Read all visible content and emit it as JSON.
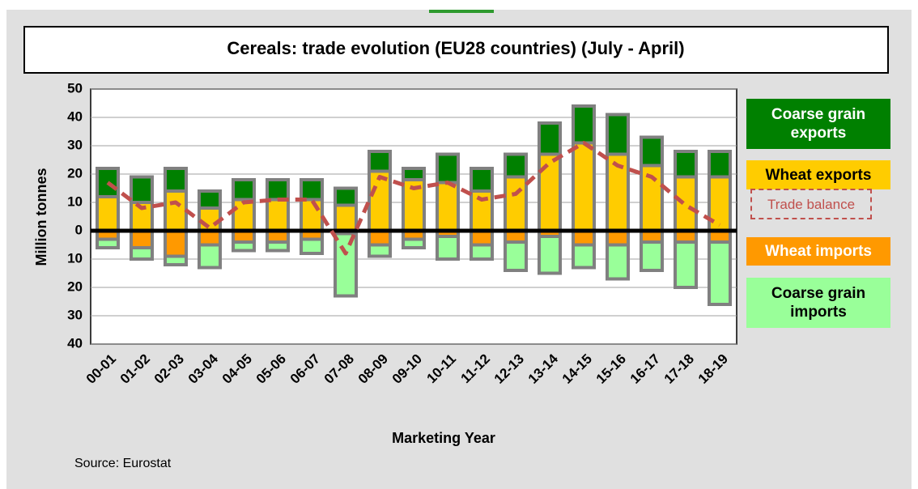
{
  "chart_data": {
    "type": "bar",
    "title": "Cereals: trade evolution (EU28 countries)  (July - April)",
    "y_label": "Million  tonnes",
    "x_label": "Marketing Year",
    "source": "Source: Eurostat",
    "categories": [
      "00-01",
      "01-02",
      "02-03",
      "03-04",
      "04-05",
      "05-06",
      "06-07",
      "07-08",
      "08-09",
      "09-10",
      "10-11",
      "11-12",
      "12-13",
      "13-14",
      "14-15",
      "15-16",
      "16-17",
      "17-18",
      "18-19"
    ],
    "series": [
      {
        "name": "Coarse grain exports",
        "type": "bar",
        "color": "#008000",
        "values": [
          10,
          9,
          8,
          6,
          7,
          7,
          7,
          6,
          7,
          4,
          10,
          8,
          8,
          11,
          13,
          14,
          10,
          9,
          9
        ]
      },
      {
        "name": "Wheat exports",
        "type": "bar",
        "color": "#ffcc00",
        "values": [
          12,
          10,
          14,
          8,
          11,
          11,
          11,
          9,
          21,
          18,
          17,
          14,
          19,
          27,
          31,
          27,
          23,
          19,
          19
        ]
      },
      {
        "name": "Trade balance",
        "type": "line",
        "color": "#c0504d",
        "values": [
          17,
          8,
          10,
          1,
          10,
          11,
          11,
          -8,
          19,
          15,
          17,
          11,
          13,
          24,
          31,
          23,
          19,
          9,
          2
        ]
      },
      {
        "name": "Wheat imports",
        "type": "bar",
        "color": "#ff9900",
        "values": [
          -3,
          -6,
          -9,
          -5,
          -4,
          -4,
          -3,
          -1,
          -5,
          -3,
          -2,
          -5,
          -4,
          -2,
          -5,
          -5,
          -4,
          -4,
          -4
        ]
      },
      {
        "name": "Coarse grain imports",
        "type": "bar",
        "color": "#99ff99",
        "values": [
          -3,
          -4,
          -3,
          -8,
          -3,
          -3,
          -5,
          -22,
          -4,
          -3,
          -8,
          -5,
          -10,
          -13,
          -8,
          -12,
          -10,
          -16,
          -22
        ]
      }
    ],
    "ylim": [
      -40,
      50
    ],
    "yticks": [
      {
        "value": -40,
        "label": "40"
      },
      {
        "value": -30,
        "label": "30"
      },
      {
        "value": -20,
        "label": "20"
      },
      {
        "value": -10,
        "label": "10"
      },
      0,
      10,
      20,
      30,
      40,
      50
    ],
    "grid": true
  }
}
